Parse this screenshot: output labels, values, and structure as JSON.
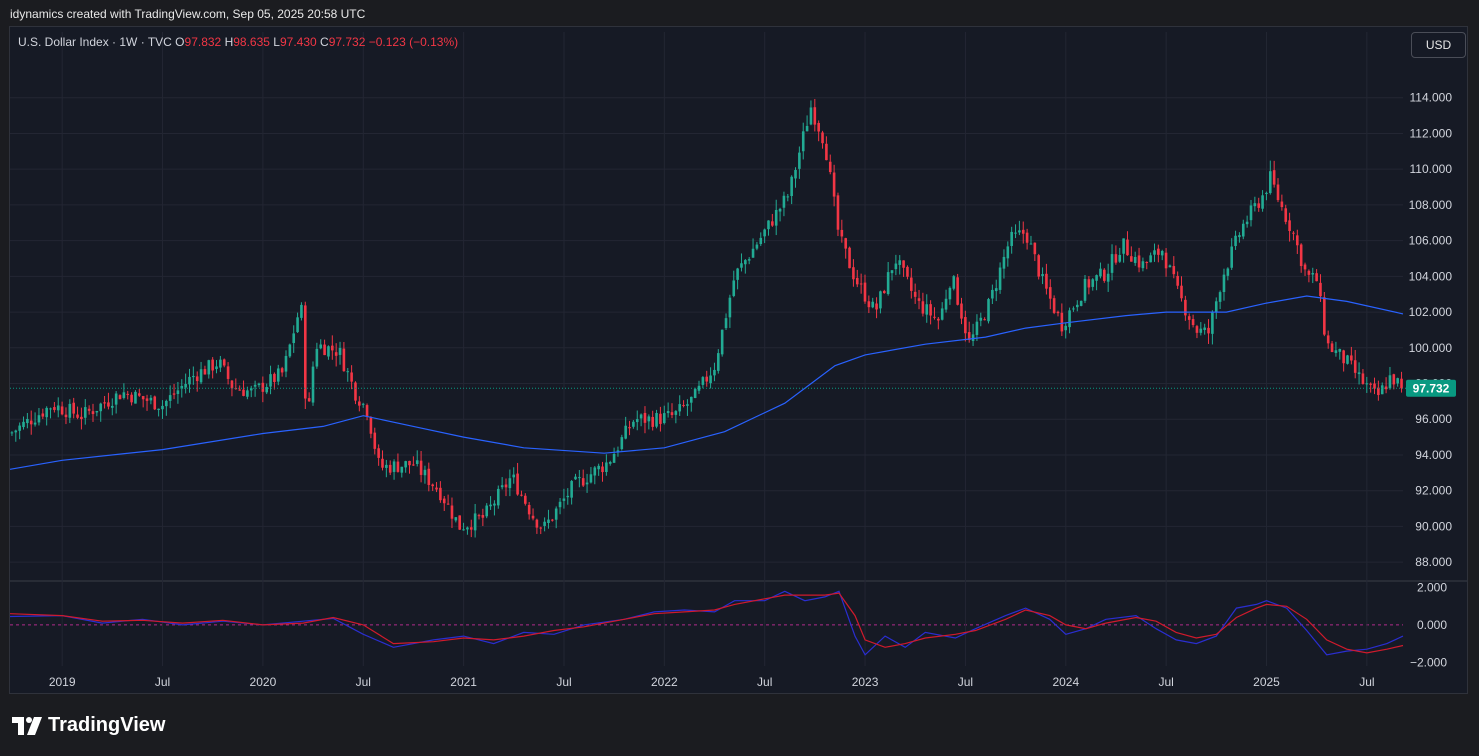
{
  "header": {
    "attribution": "idynamics created with TradingView.com, Sep 05, 2025 20:58 UTC"
  },
  "legend": {
    "symbol": "U.S. Dollar Index · 1W · TVC",
    "o_label": "O",
    "o_value": "97.832",
    "h_label": "H",
    "h_value": "98.635",
    "l_label": "L",
    "l_value": "97.430",
    "c_label": "C",
    "c_value": "97.732",
    "change": "−0.123 (−0.13%)"
  },
  "currency_button": "USD",
  "price_badge": "97.732",
  "brand": {
    "name": "TradingView"
  },
  "colors": {
    "up": "#22ab94",
    "down": "#f23645",
    "ma": "#2962ff",
    "osc_fast": "#2a2ed0",
    "osc_slow": "#d01a2c",
    "last_price": "#089981"
  },
  "chart_data": [
    {
      "type": "candlestick",
      "title": "U.S. Dollar Index · 1W · TVC",
      "ylim": [
        87,
        116
      ],
      "y_ticks": [
        "88.000",
        "90.000",
        "92.000",
        "94.000",
        "96.000",
        "98.000",
        "100.000",
        "102.000",
        "104.000",
        "106.000",
        "108.000",
        "110.000",
        "112.000",
        "114.000"
      ],
      "y_tick_values": [
        88,
        90,
        92,
        94,
        96,
        98,
        100,
        102,
        104,
        106,
        108,
        110,
        112,
        114
      ],
      "x_ticks": [
        "2019",
        "Jul",
        "2020",
        "Jul",
        "2021",
        "Jul",
        "2022",
        "Jul",
        "2023",
        "Jul",
        "2024",
        "Jul",
        "2025",
        "Jul"
      ],
      "x_tick_dates": [
        2019.0,
        2019.5,
        2020.0,
        2020.5,
        2021.0,
        2021.5,
        2022.0,
        2022.5,
        2023.0,
        2023.5,
        2024.0,
        2024.5,
        2025.0,
        2025.5
      ],
      "x_range": [
        2018.74,
        2025.68
      ],
      "last_close": 97.732,
      "price_path": [
        [
          2018.74,
          95.2
        ],
        [
          2018.95,
          96.8
        ],
        [
          2019.1,
          96.2
        ],
        [
          2019.3,
          97.5
        ],
        [
          2019.5,
          96.8
        ],
        [
          2019.65,
          98.4
        ],
        [
          2019.78,
          99.2
        ],
        [
          2019.85,
          97.8
        ],
        [
          2019.95,
          97.5
        ],
        [
          2020.1,
          98.6
        ],
        [
          2020.19,
          102.5
        ],
        [
          2020.22,
          95.5
        ],
        [
          2020.26,
          100.2
        ],
        [
          2020.38,
          99.8
        ],
        [
          2020.46,
          97.5
        ],
        [
          2020.52,
          96.5
        ],
        [
          2020.58,
          93.3
        ],
        [
          2020.75,
          93.5
        ],
        [
          2020.88,
          92.0
        ],
        [
          2020.98,
          90.0
        ],
        [
          2021.1,
          90.5
        ],
        [
          2021.24,
          92.8
        ],
        [
          2021.35,
          90.5
        ],
        [
          2021.4,
          89.9
        ],
        [
          2021.55,
          92.3
        ],
        [
          2021.72,
          93.6
        ],
        [
          2021.85,
          96.0
        ],
        [
          2021.95,
          96.0
        ],
        [
          2022.05,
          96.2
        ],
        [
          2022.15,
          97.2
        ],
        [
          2022.25,
          99.0
        ],
        [
          2022.35,
          104.0
        ],
        [
          2022.5,
          106.5
        ],
        [
          2022.62,
          108.6
        ],
        [
          2022.73,
          113.5
        ],
        [
          2022.8,
          111.5
        ],
        [
          2022.87,
          106.2
        ],
        [
          2022.95,
          103.9
        ],
        [
          2023.05,
          102.0
        ],
        [
          2023.15,
          105.0
        ],
        [
          2023.26,
          102.5
        ],
        [
          2023.37,
          101.5
        ],
        [
          2023.43,
          104.1
        ],
        [
          2023.52,
          100.2
        ],
        [
          2023.62,
          102.5
        ],
        [
          2023.72,
          106.0
        ],
        [
          2023.8,
          106.5
        ],
        [
          2023.89,
          103.5
        ],
        [
          2023.98,
          101.3
        ],
        [
          2024.1,
          103.5
        ],
        [
          2024.2,
          104.2
        ],
        [
          2024.28,
          105.8
        ],
        [
          2024.38,
          104.6
        ],
        [
          2024.48,
          105.5
        ],
        [
          2024.56,
          103.0
        ],
        [
          2024.65,
          101.0
        ],
        [
          2024.71,
          100.8
        ],
        [
          2024.78,
          104.0
        ],
        [
          2024.88,
          106.8
        ],
        [
          2024.98,
          108.5
        ],
        [
          2025.02,
          109.5
        ],
        [
          2025.07,
          108.0
        ],
        [
          2025.13,
          106.5
        ],
        [
          2025.2,
          104.0
        ],
        [
          2025.25,
          103.8
        ],
        [
          2025.3,
          100.2
        ],
        [
          2025.4,
          99.2
        ],
        [
          2025.47,
          98.2
        ],
        [
          2025.55,
          97.2
        ],
        [
          2025.62,
          98.4
        ],
        [
          2025.68,
          97.7
        ]
      ],
      "ma_path": [
        [
          2018.74,
          93.2
        ],
        [
          2019.0,
          93.7
        ],
        [
          2019.5,
          94.3
        ],
        [
          2020.0,
          95.2
        ],
        [
          2020.3,
          95.6
        ],
        [
          2020.5,
          96.2
        ],
        [
          2020.75,
          95.6
        ],
        [
          2021.0,
          95.0
        ],
        [
          2021.3,
          94.4
        ],
        [
          2021.7,
          94.1
        ],
        [
          2022.0,
          94.4
        ],
        [
          2022.3,
          95.3
        ],
        [
          2022.6,
          96.9
        ],
        [
          2022.85,
          99.0
        ],
        [
          2023.0,
          99.6
        ],
        [
          2023.3,
          100.2
        ],
        [
          2023.6,
          100.6
        ],
        [
          2023.8,
          101.1
        ],
        [
          2024.0,
          101.4
        ],
        [
          2024.3,
          101.8
        ],
        [
          2024.5,
          102.0
        ],
        [
          2024.8,
          102.0
        ],
        [
          2025.0,
          102.5
        ],
        [
          2025.2,
          102.9
        ],
        [
          2025.4,
          102.6
        ],
        [
          2025.68,
          101.9
        ]
      ]
    },
    {
      "type": "line",
      "title": "",
      "ylim": [
        -2.2,
        2.3
      ],
      "y_ticks": [
        "2.000",
        "0.000",
        "−2.000"
      ],
      "y_tick_values": [
        2,
        0,
        -2
      ],
      "series": [
        {
          "values": [
            [
              2018.74,
              0.45
            ],
            [
              2019.0,
              0.5
            ],
            [
              2019.2,
              0.1
            ],
            [
              2019.4,
              0.3
            ],
            [
              2019.6,
              0.0
            ],
            [
              2019.8,
              0.2
            ],
            [
              2020.0,
              0.0
            ],
            [
              2020.2,
              0.2
            ],
            [
              2020.35,
              0.35
            ],
            [
              2020.5,
              -0.5
            ],
            [
              2020.65,
              -1.2
            ],
            [
              2020.85,
              -0.8
            ],
            [
              2021.0,
              -0.6
            ],
            [
              2021.15,
              -1.0
            ],
            [
              2021.3,
              -0.4
            ],
            [
              2021.45,
              -0.5
            ],
            [
              2021.6,
              0.0
            ],
            [
              2021.8,
              0.3
            ],
            [
              2021.95,
              0.7
            ],
            [
              2022.1,
              0.8
            ],
            [
              2022.25,
              0.7
            ],
            [
              2022.35,
              1.3
            ],
            [
              2022.5,
              1.3
            ],
            [
              2022.6,
              1.8
            ],
            [
              2022.7,
              1.3
            ],
            [
              2022.8,
              1.5
            ],
            [
              2022.87,
              1.8
            ],
            [
              2022.95,
              -0.6
            ],
            [
              2023.0,
              -1.6
            ],
            [
              2023.1,
              -0.6
            ],
            [
              2023.2,
              -1.2
            ],
            [
              2023.3,
              -0.4
            ],
            [
              2023.45,
              -0.7
            ],
            [
              2023.55,
              -0.2
            ],
            [
              2023.7,
              0.5
            ],
            [
              2023.8,
              0.9
            ],
            [
              2023.92,
              0.3
            ],
            [
              2024.0,
              -0.5
            ],
            [
              2024.1,
              -0.2
            ],
            [
              2024.2,
              0.3
            ],
            [
              2024.35,
              0.5
            ],
            [
              2024.45,
              -0.2
            ],
            [
              2024.55,
              -0.8
            ],
            [
              2024.65,
              -1.0
            ],
            [
              2024.75,
              -0.6
            ],
            [
              2024.85,
              0.9
            ],
            [
              2024.95,
              1.1
            ],
            [
              2025.0,
              1.3
            ],
            [
              2025.1,
              0.9
            ],
            [
              2025.2,
              -0.3
            ],
            [
              2025.3,
              -1.6
            ],
            [
              2025.4,
              -1.4
            ],
            [
              2025.5,
              -1.3
            ],
            [
              2025.6,
              -1.0
            ],
            [
              2025.68,
              -0.6
            ]
          ]
        },
        {
          "values": [
            [
              2018.74,
              0.6
            ],
            [
              2019.0,
              0.5
            ],
            [
              2019.2,
              0.2
            ],
            [
              2019.4,
              0.25
            ],
            [
              2019.6,
              0.1
            ],
            [
              2019.8,
              0.25
            ],
            [
              2020.0,
              0.0
            ],
            [
              2020.2,
              0.1
            ],
            [
              2020.35,
              0.4
            ],
            [
              2020.5,
              0.0
            ],
            [
              2020.65,
              -1.0
            ],
            [
              2020.85,
              -0.9
            ],
            [
              2021.0,
              -0.7
            ],
            [
              2021.15,
              -0.8
            ],
            [
              2021.3,
              -0.6
            ],
            [
              2021.45,
              -0.3
            ],
            [
              2021.6,
              -0.1
            ],
            [
              2021.8,
              0.3
            ],
            [
              2021.95,
              0.6
            ],
            [
              2022.1,
              0.7
            ],
            [
              2022.25,
              0.8
            ],
            [
              2022.35,
              1.1
            ],
            [
              2022.5,
              1.4
            ],
            [
              2022.6,
              1.6
            ],
            [
              2022.7,
              1.6
            ],
            [
              2022.8,
              1.6
            ],
            [
              2022.87,
              1.7
            ],
            [
              2022.95,
              0.5
            ],
            [
              2023.0,
              -0.8
            ],
            [
              2023.1,
              -1.2
            ],
            [
              2023.2,
              -1.0
            ],
            [
              2023.3,
              -0.7
            ],
            [
              2023.45,
              -0.5
            ],
            [
              2023.55,
              -0.3
            ],
            [
              2023.7,
              0.3
            ],
            [
              2023.8,
              0.8
            ],
            [
              2023.92,
              0.5
            ],
            [
              2024.0,
              0.0
            ],
            [
              2024.1,
              -0.2
            ],
            [
              2024.2,
              0.1
            ],
            [
              2024.35,
              0.4
            ],
            [
              2024.45,
              0.2
            ],
            [
              2024.55,
              -0.4
            ],
            [
              2024.65,
              -0.7
            ],
            [
              2024.75,
              -0.5
            ],
            [
              2024.85,
              0.4
            ],
            [
              2024.95,
              0.9
            ],
            [
              2025.0,
              1.1
            ],
            [
              2025.1,
              1.0
            ],
            [
              2025.2,
              0.3
            ],
            [
              2025.3,
              -0.8
            ],
            [
              2025.4,
              -1.3
            ],
            [
              2025.5,
              -1.5
            ],
            [
              2025.6,
              -1.3
            ],
            [
              2025.68,
              -1.1
            ]
          ]
        }
      ]
    }
  ]
}
